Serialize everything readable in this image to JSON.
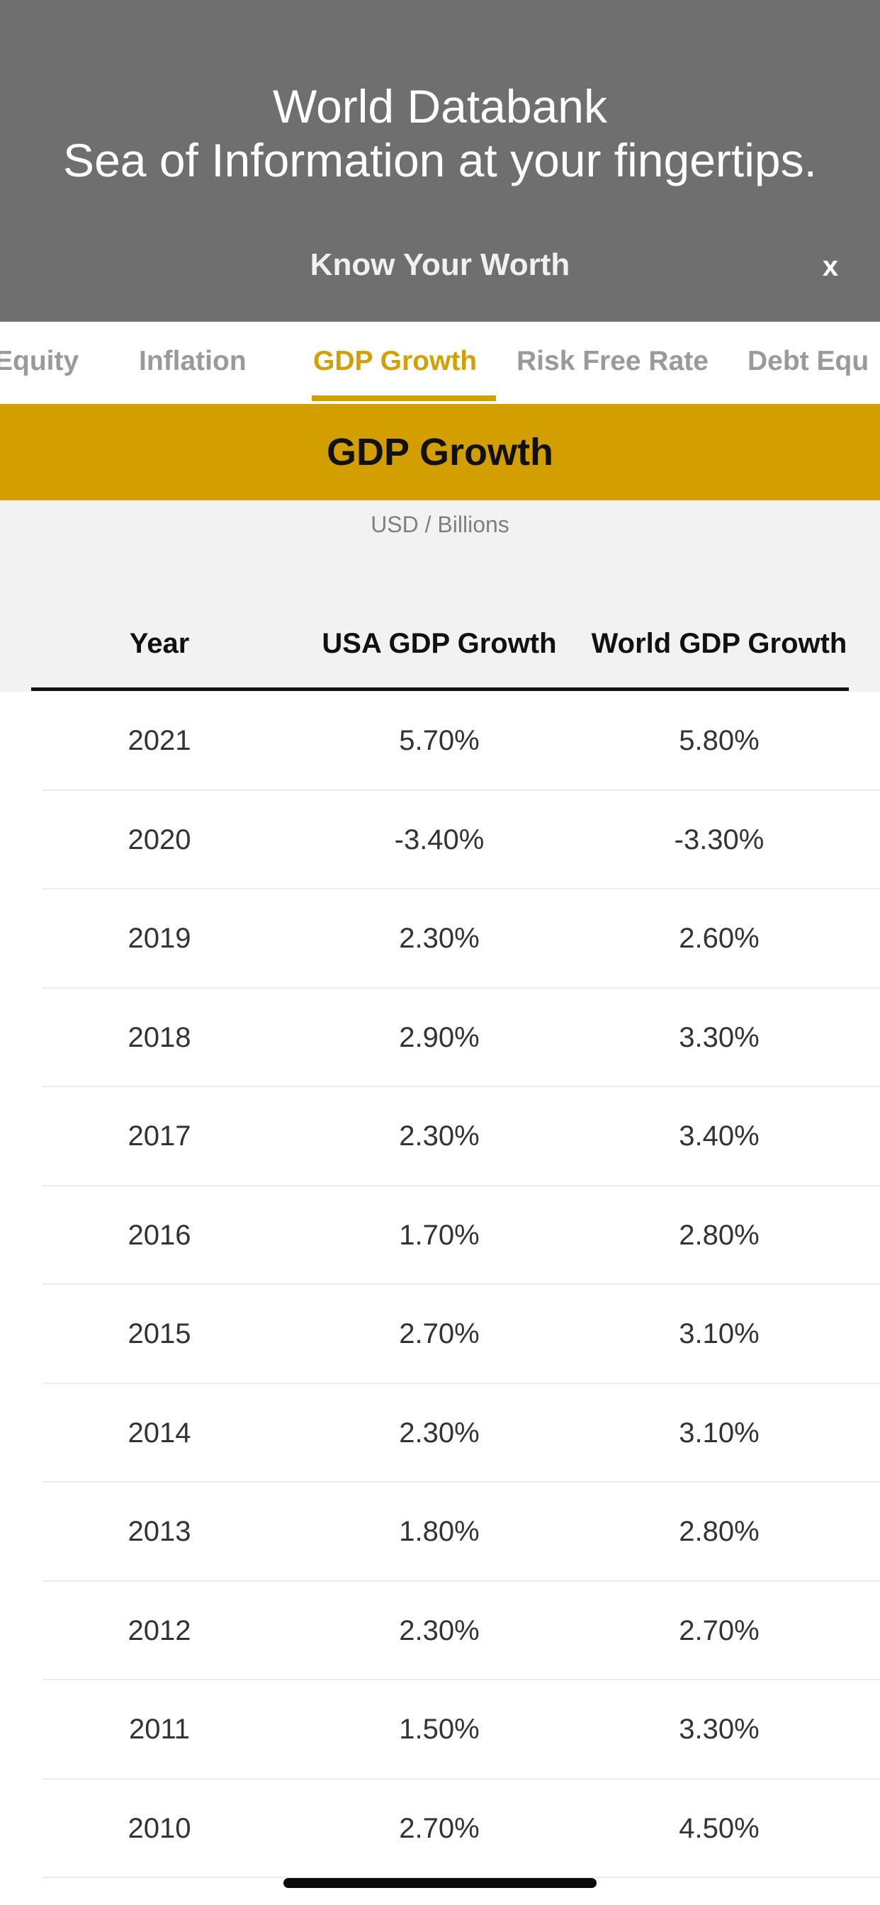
{
  "banner": {
    "line1": "World Databank",
    "line2": "Sea of Information at your fingertips.",
    "subtitle": "Know Your Worth",
    "close_label": "x"
  },
  "tabs": [
    {
      "label": "Equity",
      "active": false
    },
    {
      "label": "Inflation",
      "active": false
    },
    {
      "label": "GDP Growth",
      "active": true
    },
    {
      "label": "Risk Free Rate",
      "active": false
    },
    {
      "label": "Debt Equ",
      "active": false
    }
  ],
  "section": {
    "title": "GDP Growth",
    "units": "USD / Billions"
  },
  "table": {
    "headers": [
      "Year",
      "USA GDP Growth",
      "World GDP Growth"
    ],
    "rows": [
      [
        "2021",
        "5.70%",
        "5.80%"
      ],
      [
        "2020",
        "-3.40%",
        "-3.30%"
      ],
      [
        "2019",
        "2.30%",
        "2.60%"
      ],
      [
        "2018",
        "2.90%",
        "3.30%"
      ],
      [
        "2017",
        "2.30%",
        "3.40%"
      ],
      [
        "2016",
        "1.70%",
        "2.80%"
      ],
      [
        "2015",
        "2.70%",
        "3.10%"
      ],
      [
        "2014",
        "2.30%",
        "3.10%"
      ],
      [
        "2013",
        "1.80%",
        "2.80%"
      ],
      [
        "2012",
        "2.30%",
        "2.70%"
      ],
      [
        "2011",
        "1.50%",
        "3.30%"
      ],
      [
        "2010",
        "2.70%",
        "4.50%"
      ]
    ]
  },
  "colors": {
    "accent": "#d39e00",
    "active_tab": "#d1a005",
    "banner_bg": "#6f6f6f"
  }
}
